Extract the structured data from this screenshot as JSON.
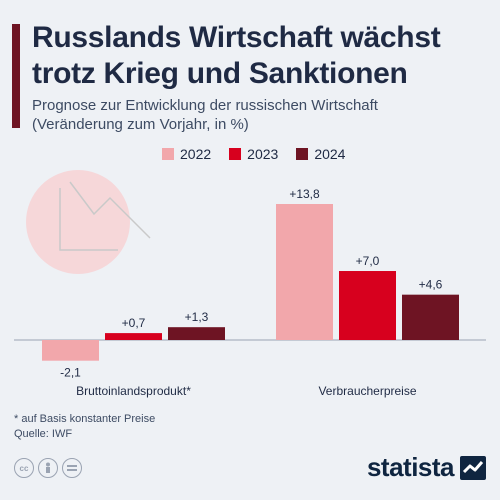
{
  "header": {
    "title_line1": "Russlands Wirtschaft wächst",
    "title_line2": "trotz Krieg und Sanktionen",
    "subtitle_line1": "Prognose zur Entwicklung der russischen Wirtschaft",
    "subtitle_line2": "(Veränderung zum Vorjahr, in %)"
  },
  "colors": {
    "accent": "#6e1423",
    "2022": "#f2a7ab",
    "2023": "#d7001e",
    "2024": "#6e1423"
  },
  "chart_data": {
    "type": "bar",
    "categories": [
      "Bruttoinlandsprodukt*",
      "Verbraucherpreise"
    ],
    "series": [
      {
        "name": "2022",
        "values": [
          -2.1,
          13.8
        ],
        "labels": [
          "-2,1",
          "+13,8"
        ]
      },
      {
        "name": "2023",
        "values": [
          0.7,
          7.0
        ],
        "labels": [
          "+0,7",
          "+7,0"
        ]
      },
      {
        "name": "2024",
        "values": [
          1.3,
          4.6
        ],
        "labels": [
          "+1,3",
          "+4,6"
        ]
      }
    ],
    "legend_position": "top",
    "grid": false
  },
  "footer": {
    "note": "* auf Basis konstanter Preise",
    "source": "Quelle: IWF",
    "brand": "statista"
  },
  "icons": [
    "cc-icon",
    "person-icon",
    "equals-icon",
    "chart-decoration-icon",
    "statista-logo-icon"
  ]
}
